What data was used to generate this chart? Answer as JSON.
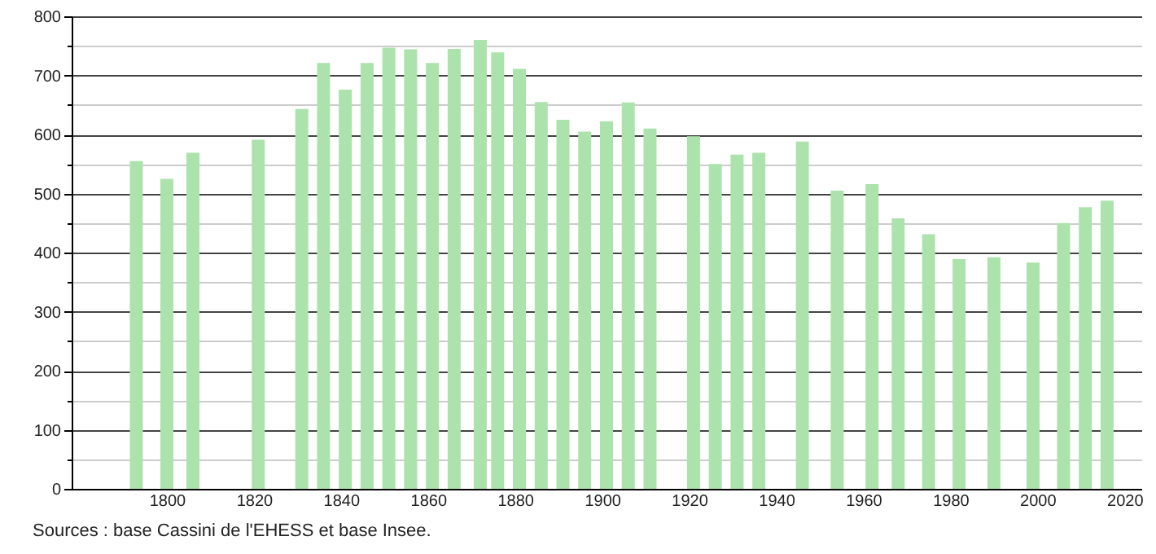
{
  "chart_data": {
    "type": "bar",
    "x": [
      1793,
      1800,
      1806,
      1821,
      1831,
      1836,
      1841,
      1846,
      1851,
      1856,
      1861,
      1866,
      1872,
      1876,
      1881,
      1886,
      1891,
      1896,
      1901,
      1906,
      1911,
      1921,
      1926,
      1931,
      1936,
      1946,
      1954,
      1962,
      1968,
      1975,
      1982,
      1990,
      1999,
      2006,
      2011,
      2016
    ],
    "values": [
      555,
      525,
      569,
      591,
      643,
      721,
      676,
      721,
      747,
      744,
      721,
      745,
      760,
      739,
      711,
      655,
      625,
      605,
      622,
      654,
      610,
      597,
      550,
      566,
      569,
      588,
      505,
      516,
      458,
      431,
      389,
      392,
      383,
      450,
      477,
      488
    ],
    "color": "#ace3ac",
    "xlim": [
      1780,
      2022
    ],
    "xticks": [
      1800,
      1820,
      1840,
      1860,
      1880,
      1900,
      1920,
      1940,
      1960,
      1980,
      2000,
      2020
    ],
    "ylim": [
      0,
      800
    ],
    "yticks": [
      0,
      {
        "value": 50,
        "label": null
      },
      100,
      {
        "value": 150,
        "label": null
      },
      200,
      {
        "value": 250,
        "label": null
      },
      300,
      {
        "value": 350,
        "label": null
      },
      400,
      {
        "value": 450,
        "label": null
      },
      500,
      {
        "value": 550,
        "label": null
      },
      600,
      {
        "value": 650,
        "label": null
      },
      700,
      {
        "value": 750,
        "label": null
      },
      800
    ],
    "grid": "y",
    "annotations": [
      "Sources : base Cassini de l'EHESS et base Insee."
    ]
  }
}
